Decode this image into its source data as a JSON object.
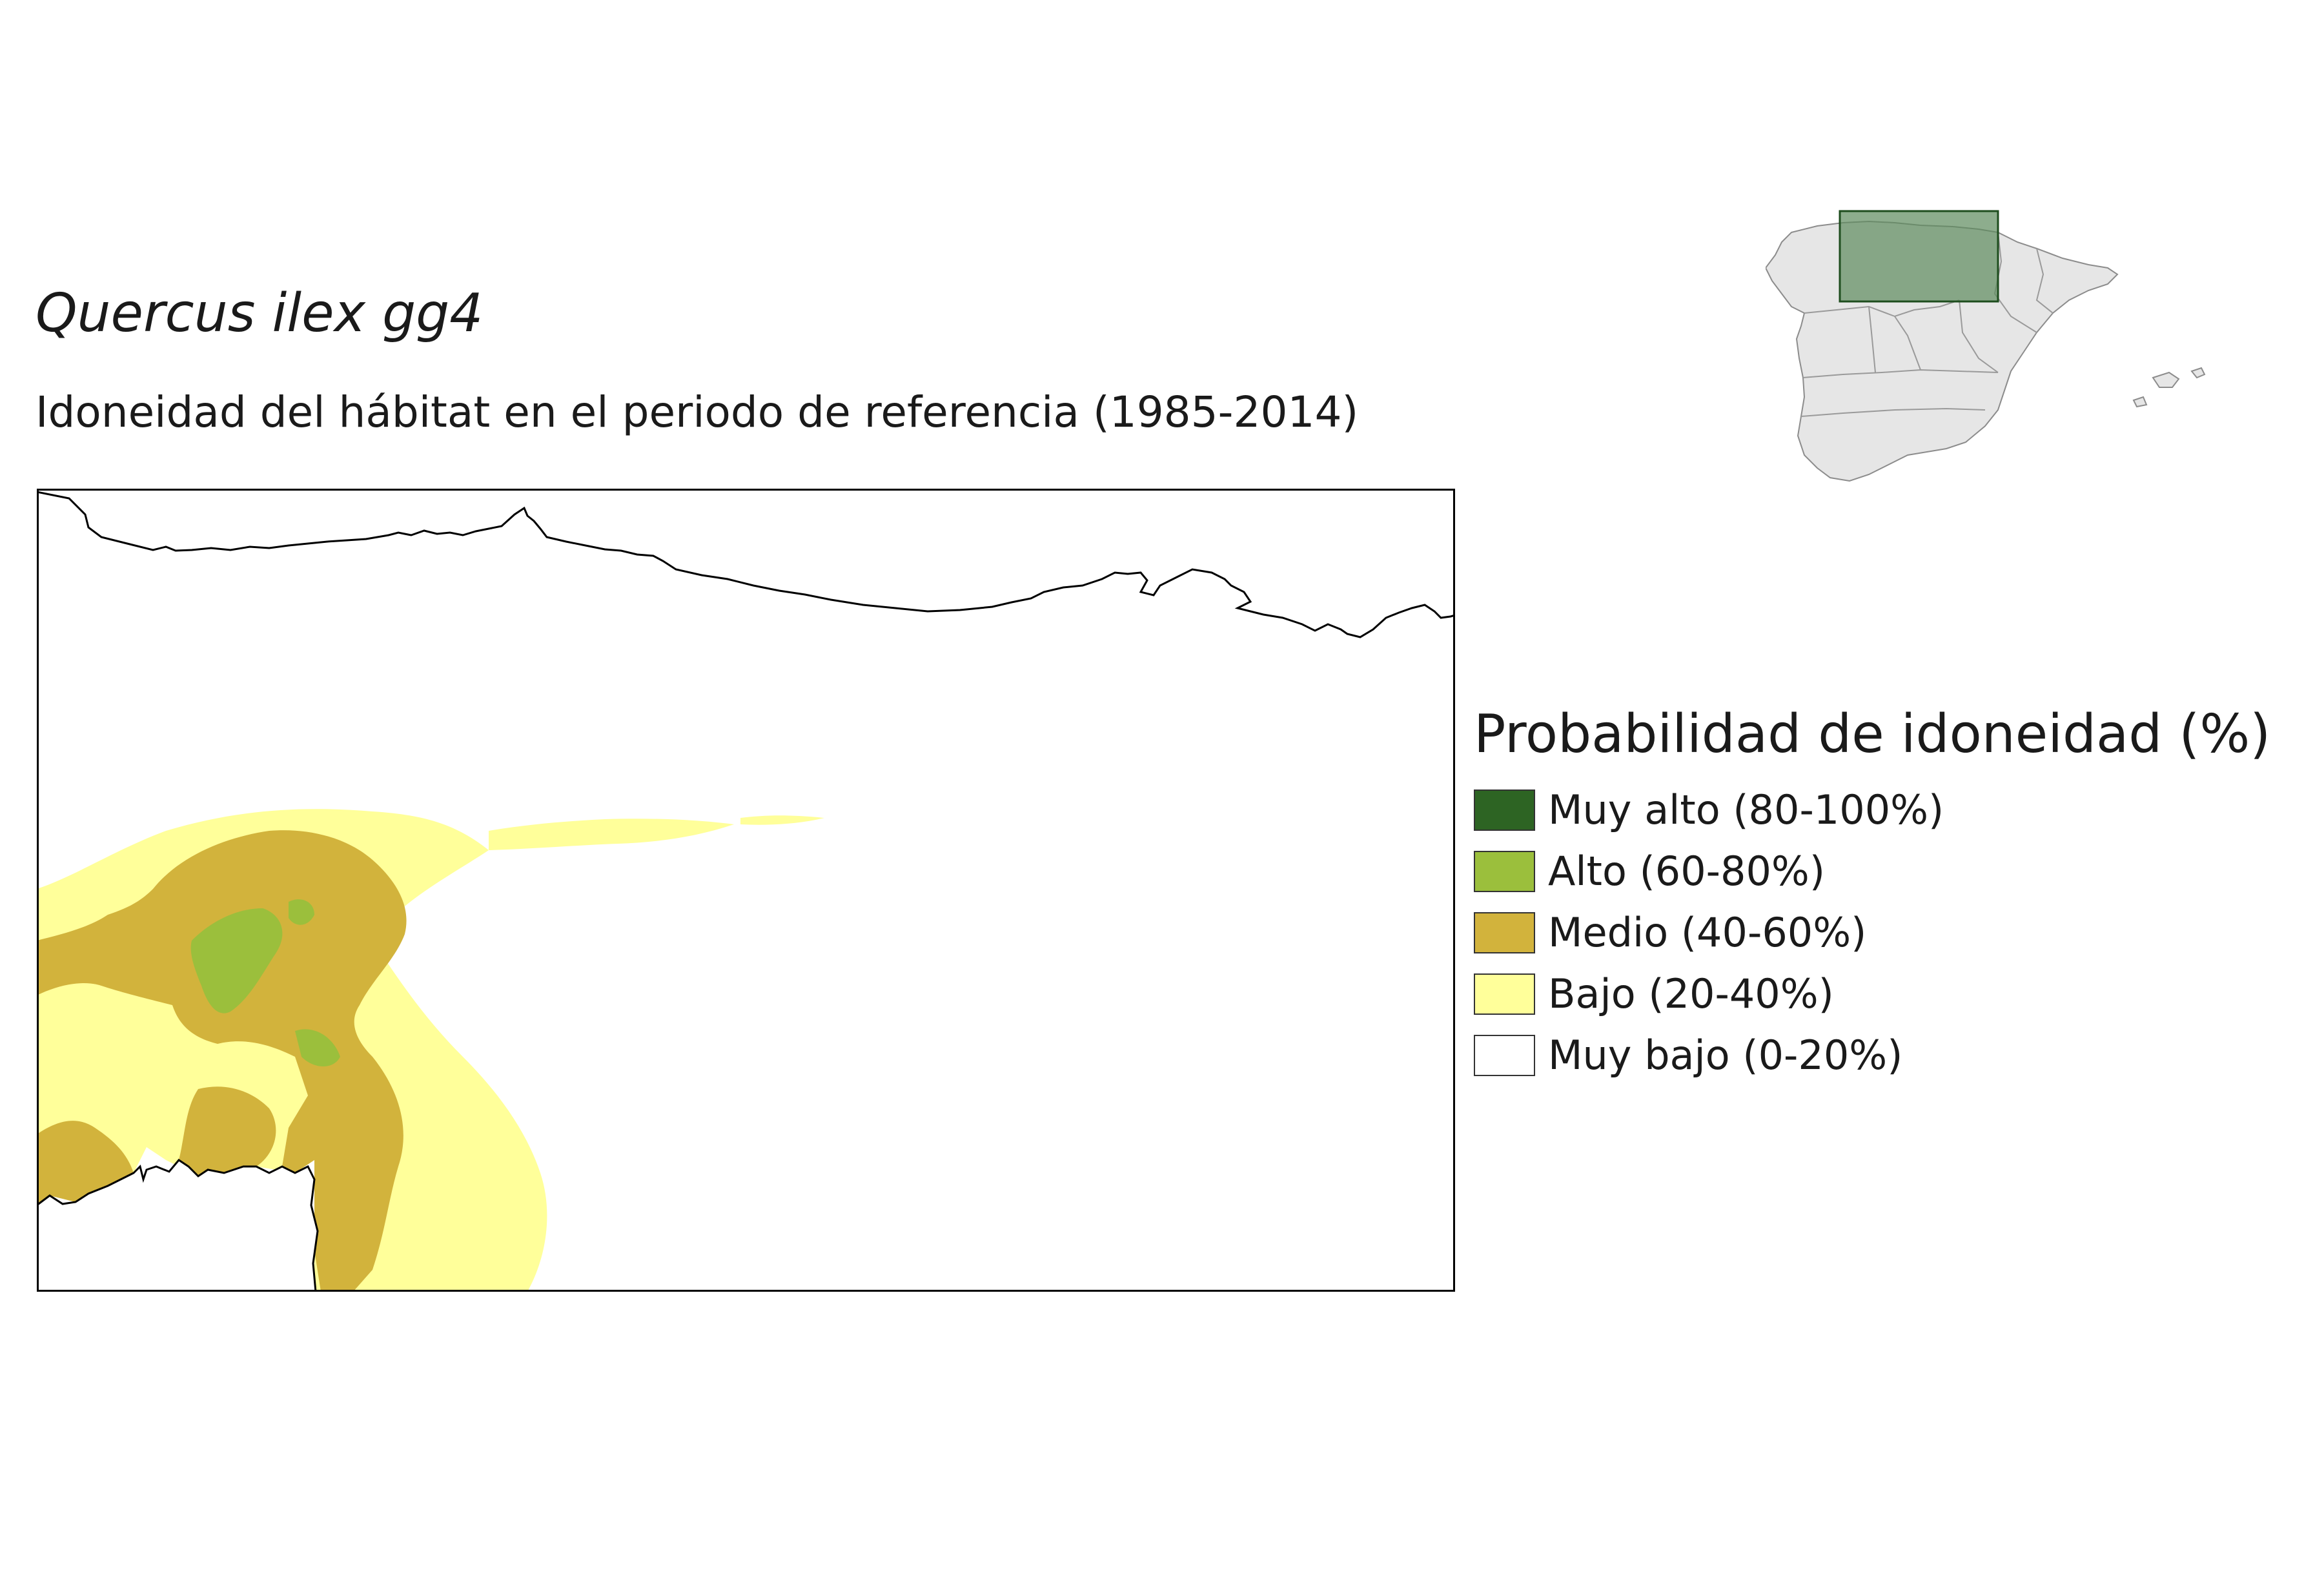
{
  "title": "Quercus ilex gg4",
  "subtitle": "Idoneidad del hábitat en el periodo de referencia (1985-2014)",
  "legend": {
    "title": "Probabilidad de idoneidad (%)",
    "items": [
      {
        "label": "Muy alto (80-100%)",
        "color": "#2d6423"
      },
      {
        "label": "Alto (60-80%)",
        "color": "#9bbf3c"
      },
      {
        "label": "Medio (40-60%)",
        "color": "#d2b33c"
      },
      {
        "label": "Bajo (20-40%)",
        "color": "#ffff9a"
      },
      {
        "label": "Muy bajo (0-20%)",
        "color": "#ffffff"
      }
    ]
  },
  "locator": {
    "country_fill": "#e6e6e6",
    "country_stroke": "#8c8c8c",
    "highlight_fill": "#5c8a5c",
    "highlight_stroke": "#1e4d1e"
  }
}
